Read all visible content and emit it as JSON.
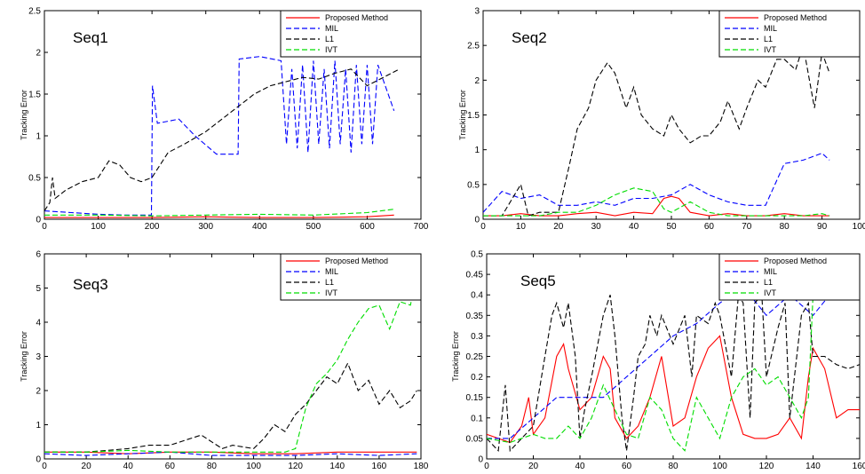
{
  "legend_entries": [
    "Proposed Method",
    "MIL",
    "L1",
    "IVT"
  ],
  "colors": {
    "Proposed Method": "#ff0000",
    "MIL": "#0000ff",
    "L1": "#000000",
    "IVT": "#00dd00"
  },
  "chart_data": [
    {
      "type": "line",
      "title": "Seq1",
      "ylabel": "Tracking Error",
      "xlim": [
        0,
        700
      ],
      "ylim": [
        0,
        2.5
      ],
      "xticks": [
        0,
        100,
        200,
        300,
        400,
        500,
        600,
        700
      ],
      "yticks": [
        0,
        0.5,
        1,
        1.5,
        2,
        2.5
      ],
      "xtick_labels": [
        "0",
        "100",
        "200",
        "300",
        "400",
        "500",
        "600",
        "700"
      ],
      "ytick_labels": [
        "0",
        "0.5",
        "1",
        "1.5",
        "2",
        "2.5"
      ],
      "legend": "top-right",
      "series": [
        {
          "name": "Proposed Method",
          "x": [
            0,
            100,
            200,
            300,
            400,
            500,
            600,
            650
          ],
          "y": [
            0.02,
            0.02,
            0.02,
            0.03,
            0.02,
            0.02,
            0.03,
            0.05
          ]
        },
        {
          "name": "MIL",
          "x": [
            0,
            50,
            100,
            150,
            199,
            201,
            210,
            250,
            280,
            320,
            360,
            362,
            400,
            440,
            450,
            460,
            470,
            480,
            490,
            500,
            510,
            520,
            530,
            540,
            550,
            560,
            570,
            580,
            590,
            600,
            610,
            620,
            650
          ],
          "y": [
            0.1,
            0.08,
            0.06,
            0.05,
            0.05,
            1.6,
            1.15,
            1.2,
            1.0,
            0.78,
            0.78,
            1.92,
            1.95,
            1.9,
            0.9,
            1.8,
            0.85,
            1.85,
            0.8,
            1.9,
            0.9,
            1.8,
            0.85,
            1.9,
            0.9,
            1.8,
            0.8,
            1.85,
            0.9,
            1.85,
            0.9,
            1.85,
            1.3
          ]
        },
        {
          "name": "L1",
          "x": [
            0,
            10,
            15,
            20,
            40,
            70,
            100,
            120,
            140,
            160,
            180,
            200,
            230,
            260,
            300,
            330,
            360,
            390,
            420,
            450,
            480,
            510,
            540,
            570,
            600,
            630,
            660
          ],
          "y": [
            0.1,
            0.2,
            0.5,
            0.25,
            0.35,
            0.45,
            0.5,
            0.7,
            0.65,
            0.5,
            0.45,
            0.5,
            0.8,
            0.9,
            1.05,
            1.2,
            1.35,
            1.5,
            1.6,
            1.65,
            1.7,
            1.68,
            1.75,
            1.8,
            1.6,
            1.7,
            1.8
          ]
        },
        {
          "name": "IVT",
          "x": [
            0,
            100,
            200,
            300,
            400,
            500,
            600,
            650
          ],
          "y": [
            0.05,
            0.05,
            0.04,
            0.05,
            0.06,
            0.05,
            0.08,
            0.12
          ]
        }
      ]
    },
    {
      "type": "line",
      "title": "Seq2",
      "ylabel": "Tracking Error",
      "xlim": [
        0,
        100
      ],
      "ylim": [
        0,
        3
      ],
      "xticks": [
        0,
        10,
        20,
        30,
        40,
        50,
        60,
        70,
        80,
        90,
        100
      ],
      "yticks": [
        0,
        0.5,
        1,
        1.5,
        2,
        2.5,
        3
      ],
      "xtick_labels": [
        "0",
        "10",
        "20",
        "30",
        "40",
        "50",
        "60",
        "70",
        "80",
        "90",
        "100"
      ],
      "ytick_labels": [
        "0",
        "0.5",
        "1",
        "1.5",
        "2",
        "2.5",
        "3"
      ],
      "legend": "top-right",
      "series": [
        {
          "name": "Proposed Method",
          "x": [
            0,
            5,
            10,
            15,
            20,
            25,
            30,
            35,
            40,
            45,
            48,
            50,
            52,
            55,
            60,
            65,
            70,
            75,
            80,
            85,
            90,
            92
          ],
          "y": [
            0.05,
            0.05,
            0.08,
            0.05,
            0.05,
            0.08,
            0.1,
            0.05,
            0.1,
            0.08,
            0.3,
            0.33,
            0.3,
            0.1,
            0.05,
            0.08,
            0.05,
            0.05,
            0.08,
            0.05,
            0.05,
            0.05
          ]
        },
        {
          "name": "MIL",
          "x": [
            0,
            5,
            10,
            15,
            20,
            25,
            30,
            35,
            40,
            45,
            50,
            55,
            60,
            65,
            70,
            75,
            80,
            85,
            90,
            92
          ],
          "y": [
            0.1,
            0.4,
            0.3,
            0.35,
            0.2,
            0.2,
            0.25,
            0.2,
            0.3,
            0.3,
            0.35,
            0.5,
            0.35,
            0.25,
            0.2,
            0.2,
            0.8,
            0.85,
            0.95,
            0.85
          ]
        },
        {
          "name": "L1",
          "x": [
            0,
            5,
            10,
            12,
            15,
            20,
            23,
            25,
            28,
            30,
            33,
            35,
            38,
            40,
            42,
            45,
            48,
            50,
            52,
            55,
            58,
            60,
            63,
            65,
            68,
            70,
            73,
            75,
            78,
            80,
            83,
            85,
            88,
            90,
            92
          ],
          "y": [
            0.05,
            0.05,
            0.5,
            0.05,
            0.1,
            0.1,
            0.8,
            1.3,
            1.6,
            2.0,
            2.25,
            2.1,
            1.6,
            1.9,
            1.5,
            1.3,
            1.2,
            1.5,
            1.3,
            1.1,
            1.2,
            1.2,
            1.4,
            1.7,
            1.3,
            1.6,
            2.0,
            1.9,
            2.3,
            2.3,
            2.15,
            2.5,
            1.6,
            2.4,
            2.1
          ]
        },
        {
          "name": "IVT",
          "x": [
            0,
            5,
            10,
            15,
            20,
            25,
            30,
            35,
            40,
            45,
            48,
            50,
            55,
            60,
            65,
            70,
            75,
            80,
            85,
            90,
            92
          ],
          "y": [
            0.05,
            0.05,
            0.05,
            0.05,
            0.1,
            0.1,
            0.2,
            0.35,
            0.45,
            0.4,
            0.15,
            0.1,
            0.25,
            0.1,
            0.05,
            0.05,
            0.05,
            0.05,
            0.05,
            0.08,
            0.05
          ]
        }
      ]
    },
    {
      "type": "line",
      "title": "Seq3",
      "ylabel": "Tracking Error",
      "xlim": [
        0,
        180
      ],
      "ylim": [
        0,
        6
      ],
      "xticks": [
        0,
        20,
        40,
        60,
        80,
        100,
        120,
        140,
        160,
        180
      ],
      "yticks": [
        0,
        1,
        2,
        3,
        4,
        5,
        6
      ],
      "xtick_labels": [
        "0",
        "20",
        "40",
        "60",
        "80",
        "100",
        "120",
        "140",
        "160",
        "180"
      ],
      "ytick_labels": [
        "0",
        "1",
        "2",
        "3",
        "4",
        "5",
        "6"
      ],
      "legend": "top-right",
      "series": [
        {
          "name": "Proposed Method",
          "x": [
            0,
            20,
            40,
            60,
            80,
            100,
            120,
            140,
            160,
            178
          ],
          "y": [
            0.2,
            0.2,
            0.15,
            0.2,
            0.2,
            0.15,
            0.15,
            0.2,
            0.2,
            0.2
          ]
        },
        {
          "name": "MIL",
          "x": [
            0,
            20,
            40,
            60,
            80,
            100,
            120,
            140,
            160,
            178
          ],
          "y": [
            0.15,
            0.1,
            0.15,
            0.2,
            0.1,
            0.1,
            0.1,
            0.15,
            0.1,
            0.15
          ]
        },
        {
          "name": "L1",
          "x": [
            0,
            20,
            40,
            50,
            60,
            70,
            75,
            80,
            85,
            90,
            100,
            105,
            110,
            115,
            120,
            125,
            130,
            135,
            140,
            145,
            150,
            155,
            160,
            165,
            170,
            175,
            178
          ],
          "y": [
            0.2,
            0.2,
            0.3,
            0.4,
            0.4,
            0.6,
            0.7,
            0.5,
            0.3,
            0.4,
            0.3,
            0.6,
            1.0,
            0.8,
            1.3,
            1.6,
            2.0,
            2.4,
            2.2,
            2.8,
            2.0,
            2.3,
            1.6,
            2.0,
            1.5,
            1.7,
            2.0
          ]
        },
        {
          "name": "IVT",
          "x": [
            0,
            20,
            40,
            60,
            80,
            100,
            115,
            120,
            125,
            130,
            135,
            140,
            145,
            150,
            155,
            160,
            165,
            170,
            175,
            178
          ],
          "y": [
            0.2,
            0.2,
            0.25,
            0.2,
            0.2,
            0.2,
            0.2,
            0.3,
            1.5,
            2.2,
            2.5,
            2.9,
            3.5,
            4.0,
            4.4,
            4.5,
            3.8,
            4.6,
            4.5,
            5.5
          ]
        }
      ]
    },
    {
      "type": "line",
      "title": "Seq5",
      "ylabel": "Tracking Error",
      "xlim": [
        0,
        160
      ],
      "ylim": [
        0,
        0.5
      ],
      "xticks": [
        0,
        20,
        40,
        60,
        80,
        100,
        120,
        140,
        160
      ],
      "yticks": [
        0,
        0.05,
        0.1,
        0.15,
        0.2,
        0.25,
        0.3,
        0.35,
        0.4,
        0.45,
        0.5
      ],
      "xtick_labels": [
        "0",
        "20",
        "40",
        "60",
        "80",
        "100",
        "120",
        "140",
        "160"
      ],
      "ytick_labels": [
        "0",
        "0.05",
        "0.1",
        "0.15",
        "0.2",
        "0.25",
        "0.3",
        "0.35",
        "0.4",
        "0.45",
        "0.5"
      ],
      "legend": "top-right",
      "series": [
        {
          "name": "Proposed Method",
          "x": [
            0,
            5,
            10,
            15,
            18,
            20,
            25,
            30,
            33,
            35,
            40,
            45,
            50,
            53,
            55,
            60,
            65,
            70,
            75,
            80,
            85,
            90,
            95,
            100,
            105,
            110,
            115,
            120,
            125,
            130,
            135,
            138,
            140,
            145,
            150,
            155,
            160
          ],
          "y": [
            0.06,
            0.05,
            0.04,
            0.08,
            0.15,
            0.06,
            0.1,
            0.25,
            0.28,
            0.22,
            0.12,
            0.15,
            0.25,
            0.22,
            0.1,
            0.05,
            0.08,
            0.15,
            0.25,
            0.08,
            0.1,
            0.2,
            0.27,
            0.3,
            0.15,
            0.06,
            0.05,
            0.05,
            0.06,
            0.1,
            0.05,
            0.2,
            0.27,
            0.22,
            0.1,
            0.12,
            0.12
          ]
        },
        {
          "name": "MIL",
          "x": [
            0,
            10,
            20,
            30,
            40,
            50,
            60,
            70,
            80,
            90,
            100,
            110,
            120,
            130,
            140,
            150,
            160
          ],
          "y": [
            0.05,
            0.05,
            0.1,
            0.15,
            0.15,
            0.15,
            0.2,
            0.25,
            0.3,
            0.33,
            0.38,
            0.42,
            0.35,
            0.4,
            0.35,
            0.42,
            0.45
          ]
        },
        {
          "name": "L1",
          "x": [
            0,
            5,
            8,
            10,
            15,
            20,
            25,
            28,
            30,
            33,
            35,
            38,
            40,
            42,
            45,
            50,
            53,
            55,
            58,
            60,
            63,
            65,
            68,
            70,
            73,
            75,
            80,
            85,
            88,
            90,
            95,
            98,
            100,
            105,
            108,
            110,
            113,
            115,
            118,
            120,
            125,
            128,
            130,
            135,
            138,
            140,
            145,
            150,
            155,
            160
          ],
          "y": [
            0.05,
            0.02,
            0.18,
            0.02,
            0.05,
            0.08,
            0.25,
            0.35,
            0.38,
            0.32,
            0.38,
            0.25,
            0.05,
            0.12,
            0.2,
            0.35,
            0.4,
            0.3,
            0.1,
            0.02,
            0.15,
            0.25,
            0.28,
            0.35,
            0.3,
            0.35,
            0.28,
            0.35,
            0.2,
            0.35,
            0.33,
            0.38,
            0.35,
            0.2,
            0.4,
            0.38,
            0.1,
            0.38,
            0.4,
            0.2,
            0.32,
            0.38,
            0.1,
            0.35,
            0.38,
            0.25,
            0.25,
            0.23,
            0.22,
            0.23
          ]
        },
        {
          "name": "IVT",
          "x": [
            0,
            10,
            20,
            25,
            30,
            35,
            40,
            45,
            50,
            55,
            60,
            65,
            70,
            75,
            80,
            85,
            90,
            95,
            100,
            105,
            110,
            115,
            120,
            125,
            130,
            135,
            138,
            140,
            145,
            150,
            155,
            160
          ],
          "y": [
            0.05,
            0.04,
            0.06,
            0.05,
            0.05,
            0.08,
            0.05,
            0.1,
            0.18,
            0.12,
            0.06,
            0.05,
            0.15,
            0.12,
            0.05,
            0.02,
            0.15,
            0.1,
            0.05,
            0.15,
            0.2,
            0.22,
            0.18,
            0.2,
            0.15,
            0.1,
            0.15,
            0.4,
            0.45,
            0.46,
            0.45,
            0.47
          ]
        }
      ]
    }
  ]
}
